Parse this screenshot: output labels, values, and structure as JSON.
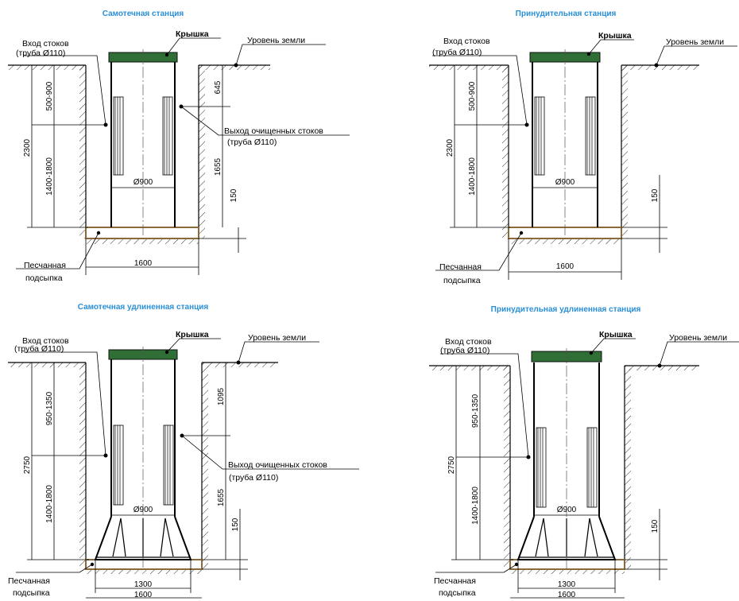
{
  "titles": {
    "gravity": "Самотечная станция",
    "forced": "Принудительная станция",
    "gravity_long": "Самотечная удлиненная станция",
    "forced_long": "Принудительная удлиненная станция"
  },
  "labels": {
    "inlet_1": "Вход стоков",
    "inlet_2": "(труба  Ø110)",
    "lid": "Крышка",
    "ground": "Уровень земли",
    "outlet_1": "Выход очищенных стоков",
    "outlet_2": "(труба  Ø110)",
    "sand_1": "Песчанная",
    "sand_2": "подсыпка"
  },
  "dims": {
    "diameter": "Ø900",
    "width": "1600",
    "base_width": "1300",
    "bedding": "150",
    "outlet_height": "1655",
    "std": {
      "total": "2300",
      "inlet_depth": "500-900",
      "inlet_height": "1400-1800",
      "outlet_depth": "645"
    },
    "long": {
      "total": "2750",
      "inlet_depth": "950-1350",
      "inlet_height": "1400-1800",
      "outlet_depth": "1095"
    }
  },
  "colors": {
    "title": "#2a8fd6",
    "lid": "#2f6e35",
    "sand_line": "#8a6a3a"
  }
}
